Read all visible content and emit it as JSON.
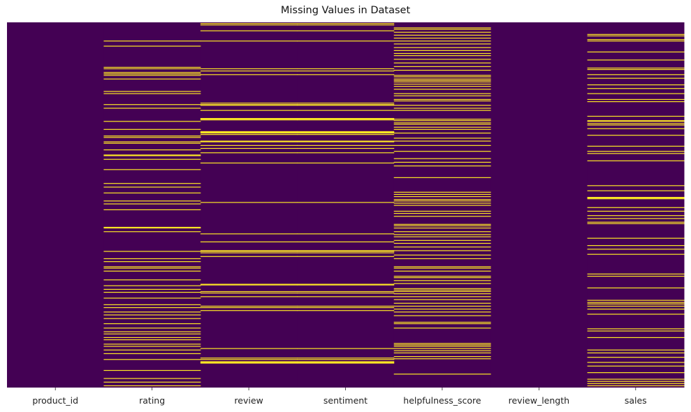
{
  "chart_data": {
    "type": "heatmap",
    "title": "Missing Values in Dataset",
    "xlabel": "",
    "ylabel": "",
    "columns": [
      "product_id",
      "rating",
      "review",
      "sentiment",
      "helpfulness_score",
      "review_length",
      "sales"
    ],
    "n_rows": 500,
    "legend": "none",
    "grid": false,
    "colors": {
      "present": "#440154",
      "missing": "#fde725"
    },
    "missing_rows": [
      [],
      [
        25,
        32,
        61,
        63,
        68,
        70,
        72,
        77,
        94,
        97,
        112,
        117,
        135,
        146,
        155,
        157,
        163,
        165,
        174,
        181,
        182,
        187,
        201,
        220,
        225,
        233,
        244,
        248,
        256,
        280,
        281,
        286,
        313,
        323,
        327,
        334,
        336,
        340,
        352,
        360,
        365,
        369,
        377,
        386,
        390,
        396,
        400,
        405,
        412,
        418,
        423,
        426,
        431,
        434,
        440,
        443,
        448,
        453,
        461,
        476,
        487,
        492,
        497
      ],
      [
        1,
        3,
        11,
        25,
        63,
        66,
        71,
        110,
        112,
        113,
        120,
        131,
        132,
        133,
        149,
        150,
        151,
        153,
        162,
        163,
        168,
        172,
        178,
        192,
        246,
        289,
        300,
        312,
        313,
        315,
        320,
        358,
        359,
        368,
        370,
        375,
        388,
        390,
        394,
        446,
        459,
        461,
        464,
        465,
        466
      ],
      [
        1,
        3,
        11,
        25,
        63,
        66,
        71,
        110,
        112,
        113,
        120,
        131,
        132,
        133,
        149,
        150,
        151,
        153,
        162,
        163,
        168,
        172,
        178,
        192,
        246,
        289,
        300,
        312,
        313,
        315,
        320,
        358,
        359,
        368,
        370,
        375,
        388,
        390,
        394,
        446,
        459,
        461,
        464,
        465,
        466
      ],
      [
        7,
        9,
        13,
        17,
        21,
        25,
        29,
        34,
        38,
        42,
        45,
        50,
        55,
        60,
        65,
        72,
        74,
        77,
        79,
        81,
        84,
        87,
        91,
        97,
        100,
        105,
        107,
        113,
        117,
        120,
        132,
        134,
        137,
        139,
        143,
        146,
        151,
        158,
        162,
        168,
        176,
        186,
        191,
        196,
        212,
        232,
        235,
        238,
        242,
        244,
        247,
        250,
        258,
        261,
        265,
        276,
        278,
        281,
        286,
        290,
        293,
        298,
        302,
        307,
        312,
        318,
        323,
        334,
        336,
        340,
        347,
        349,
        353,
        357,
        364,
        366,
        368,
        371,
        375,
        379,
        384,
        388,
        392,
        396,
        401,
        410,
        412,
        418,
        439,
        441,
        443,
        446,
        449,
        452,
        457,
        460,
        481
      ],
      [],
      [
        16,
        18,
        23,
        25,
        40,
        51,
        62,
        64,
        71,
        76,
        85,
        90,
        97,
        105,
        108,
        128,
        134,
        135,
        138,
        140,
        145,
        154,
        169,
        176,
        179,
        189,
        223,
        230,
        239,
        240,
        241,
        253,
        258,
        264,
        268,
        273,
        275,
        295,
        305,
        310,
        317,
        344,
        347,
        363,
        380,
        383,
        385,
        388,
        392,
        399,
        419,
        422,
        431,
        448,
        452,
        458,
        465,
        470,
        479,
        488,
        491,
        494,
        497
      ]
    ]
  }
}
